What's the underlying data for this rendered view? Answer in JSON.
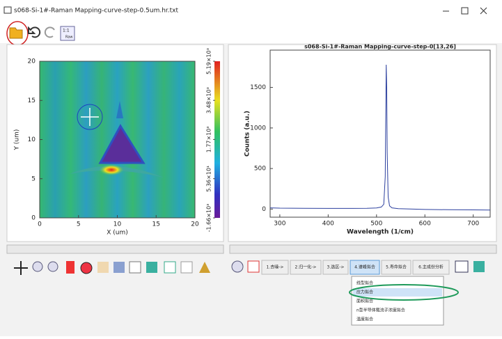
{
  "window": {
    "title": "s068-Si-1#-Raman Mapping-curve-step-0.5um.hr.txt",
    "icon_text": [
      "1:1",
      "Raw"
    ]
  },
  "chart_data": [
    {
      "type": "heatmap",
      "xlabel": "X (um)",
      "ylabel": "Y (um)",
      "xlim": [
        0,
        20
      ],
      "ylim": [
        0,
        20
      ],
      "xticks": [
        0,
        5,
        10,
        15,
        20
      ],
      "yticks": [
        0,
        5,
        10,
        15,
        20
      ],
      "colorbar": {
        "lim": [
          -1660,
          5190
        ],
        "ticks": [
          {
            "value": -1660,
            "label": "-1.66×10³"
          },
          {
            "value": 53.6,
            "label": "5.36×10¹"
          },
          {
            "value": 1770,
            "label": "1.77×10³"
          },
          {
            "value": 3480,
            "label": "3.48×10³"
          },
          {
            "value": 5190,
            "label": "5.19×10³"
          }
        ]
      }
    },
    {
      "type": "line",
      "title": "s068-Si-1#-Raman Mapping-curve-step-0[13,26]",
      "xlabel": "Wavelength (1/cm)",
      "ylabel": "Counts (a.u.)",
      "color": "#2b3f9e",
      "xlim": [
        280,
        735
      ],
      "ylim": [
        -100,
        1960
      ],
      "xticks": [
        300,
        400,
        500,
        600,
        700
      ],
      "yticks": [
        0,
        500,
        1000,
        1500
      ],
      "x": [
        280,
        300,
        350,
        400,
        450,
        480,
        500,
        510,
        515,
        518,
        520,
        521,
        522,
        524,
        527,
        532,
        545,
        570,
        600,
        650,
        700,
        735
      ],
      "values": [
        15,
        12,
        10,
        8,
        8,
        10,
        14,
        25,
        60,
        400,
        1780,
        1500,
        700,
        150,
        40,
        15,
        5,
        0,
        -5,
        -8,
        -10,
        -12
      ]
    }
  ],
  "steps": [
    "1.去噪->",
    "2.归一化->",
    "3.选区->",
    "4.谱峰拟合",
    "5.寿命拟合",
    "6.主成份分析"
  ],
  "menu": {
    "items": [
      "线型拟合",
      "应力拟合",
      "面积拟合",
      "n型半导体载流子浓度拟合",
      "温度拟合"
    ],
    "selected": 1
  }
}
